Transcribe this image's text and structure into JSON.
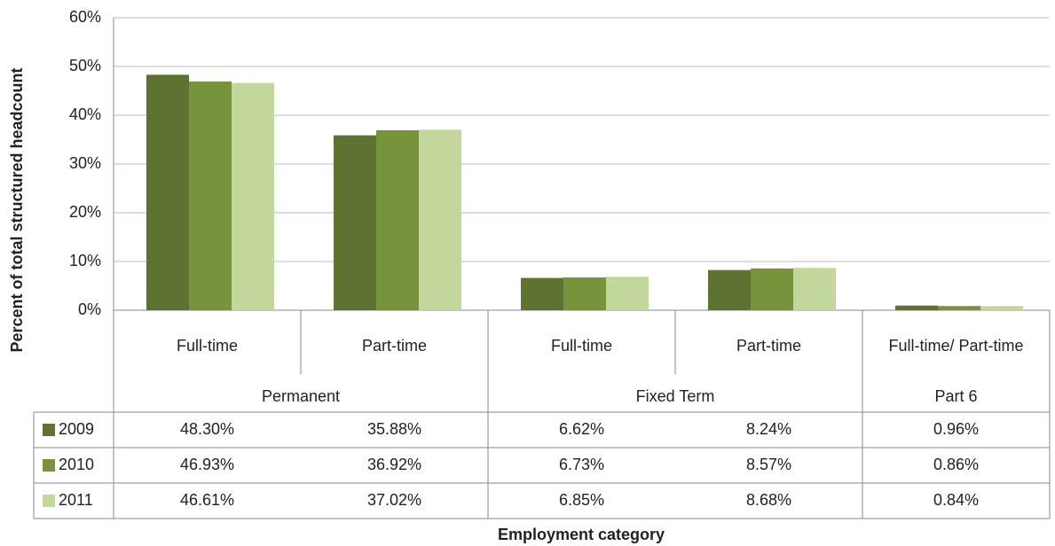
{
  "chart_data": {
    "type": "bar",
    "y_label": "Percent of total structured headcount",
    "x_label": "Employment category",
    "categories": [
      "Full-time",
      "Part-time",
      "Full-time",
      "Part-time",
      "Full-time/ Part-time"
    ],
    "groups": [
      {
        "name": "Permanent",
        "span": 2
      },
      {
        "name": "Fixed Term",
        "span": 2
      },
      {
        "name": "Part 6",
        "span": 1
      }
    ],
    "series": [
      {
        "name": "2009",
        "color": "#5e7331",
        "values": [
          48.3,
          35.88,
          6.62,
          8.24,
          0.96
        ],
        "value_labels": [
          "48.30%",
          "35.88%",
          "6.62%",
          "8.24%",
          "0.96%"
        ]
      },
      {
        "name": "2010",
        "color": "#77933c",
        "values": [
          46.93,
          36.92,
          6.73,
          8.57,
          0.86
        ],
        "value_labels": [
          "46.93%",
          "36.92%",
          "6.73%",
          "8.57%",
          "0.86%"
        ]
      },
      {
        "name": "2011",
        "color": "#c3d69b",
        "values": [
          46.61,
          37.02,
          6.85,
          8.68,
          0.84
        ],
        "value_labels": [
          "46.61%",
          "37.02%",
          "6.85%",
          "8.68%",
          "0.84%"
        ]
      }
    ],
    "ylim": [
      0,
      60
    ],
    "yticks": [
      {
        "value": 0,
        "label": "0%"
      },
      {
        "value": 10,
        "label": "10%"
      },
      {
        "value": 20,
        "label": "20%"
      },
      {
        "value": 30,
        "label": "30%"
      },
      {
        "value": 40,
        "label": "40%"
      },
      {
        "value": 50,
        "label": "50%"
      },
      {
        "value": 60,
        "label": "60%"
      }
    ],
    "grid": true
  }
}
